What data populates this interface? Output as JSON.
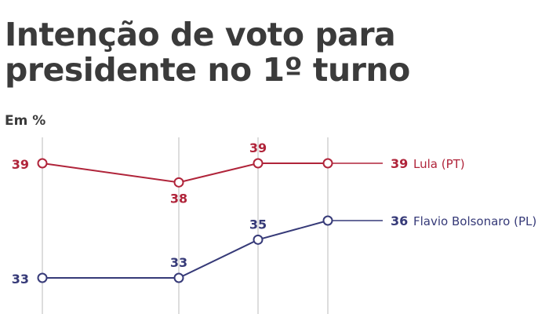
{
  "title_lines": [
    "Intenção de voto para",
    "presidente no 1º turno"
  ],
  "subtitle": "Em %",
  "colors": {
    "lula": "#b0243a",
    "flavio": "#363a78",
    "text": "#3b3b3b",
    "grid": "#bbbbbb"
  },
  "chart_data": {
    "type": "line",
    "title": "Intenção de voto para presidente no 1º turno",
    "ylabel": "Em %",
    "x": [
      1,
      2,
      3,
      4
    ],
    "ylim": [
      32,
      40
    ],
    "grid": true,
    "series": [
      {
        "name": "Lula (PT)",
        "values": [
          39,
          38,
          39,
          39
        ]
      },
      {
        "name": "Flavio Bolsonaro (PL)",
        "values": [
          33,
          33,
          35,
          36
        ]
      }
    ]
  }
}
